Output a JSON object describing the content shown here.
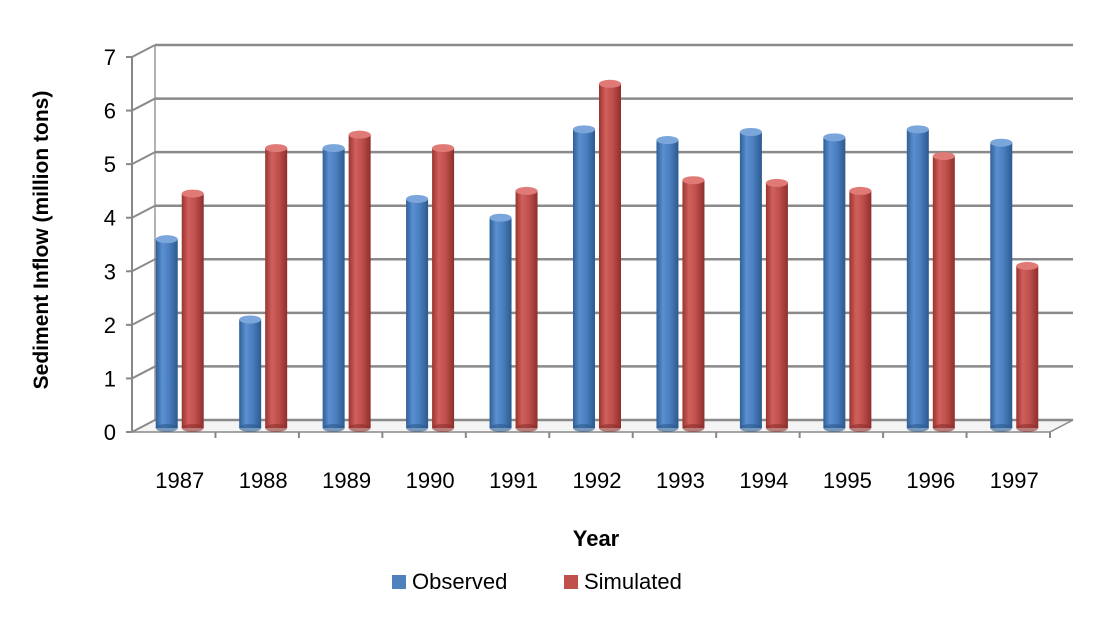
{
  "chart_data": {
    "type": "bar",
    "title": "",
    "xlabel": "Year",
    "ylabel": "Sediment Inflow (million tons)",
    "categories": [
      "1987",
      "1988",
      "1989",
      "1990",
      "1991",
      "1992",
      "1993",
      "1994",
      "1995",
      "1996",
      "1997"
    ],
    "series": [
      {
        "name": "Observed",
        "color": "#4F81BD",
        "values": [
          3.6,
          2.1,
          5.3,
          4.35,
          4.0,
          5.65,
          5.45,
          5.6,
          5.5,
          5.65,
          5.4
        ]
      },
      {
        "name": "Simulated",
        "color": "#C0504D",
        "values": [
          4.45,
          5.3,
          5.55,
          5.3,
          4.5,
          6.5,
          4.7,
          4.65,
          4.5,
          5.15,
          3.1
        ]
      }
    ],
    "yticks": [
      "0",
      "1",
      "2",
      "3",
      "4",
      "5",
      "6",
      "7"
    ],
    "ylim": [
      0,
      7
    ],
    "grid": true,
    "legend_position": "bottom"
  }
}
